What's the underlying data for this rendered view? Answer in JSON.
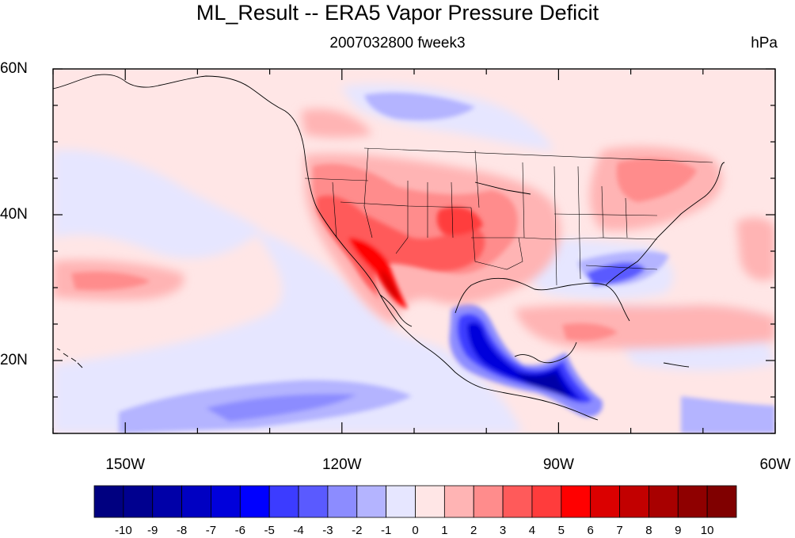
{
  "title": "ML_Result -- ERA5 Vapor Pressure Deficit",
  "subtitle": "2007032800 fweek3",
  "units": "hPa",
  "map": {
    "lat_range": [
      10,
      60
    ],
    "lon_range": [
      -160,
      -60
    ],
    "lat_ticks": [
      {
        "value": 20,
        "label": "20N"
      },
      {
        "value": 40,
        "label": "40N"
      },
      {
        "value": 60,
        "label": "60N"
      }
    ],
    "lon_ticks": [
      {
        "value": -150,
        "label": "150W"
      },
      {
        "value": -120,
        "label": "120W"
      },
      {
        "value": -90,
        "label": "90W"
      },
      {
        "value": -60,
        "label": "60W"
      }
    ]
  },
  "colorbar": {
    "labels": [
      "-10",
      "-9",
      "-8",
      "-7",
      "-6",
      "-5",
      "-4",
      "-3",
      "-2",
      "-1",
      "0",
      "1",
      "2",
      "3",
      "4",
      "5",
      "6",
      "7",
      "8",
      "9",
      "10"
    ],
    "colors": [
      "#000080",
      "#00008f",
      "#0000a8",
      "#0000c2",
      "#0000db",
      "#0000ff",
      "#3c3cff",
      "#5a5aff",
      "#8c8cff",
      "#b4b4ff",
      "#e6e6ff",
      "#ffe6e6",
      "#ffb4b4",
      "#ff8c8c",
      "#ff5a5a",
      "#ff3c3c",
      "#ff0000",
      "#db0000",
      "#c20000",
      "#a80000",
      "#8f0000",
      "#800000"
    ]
  }
}
